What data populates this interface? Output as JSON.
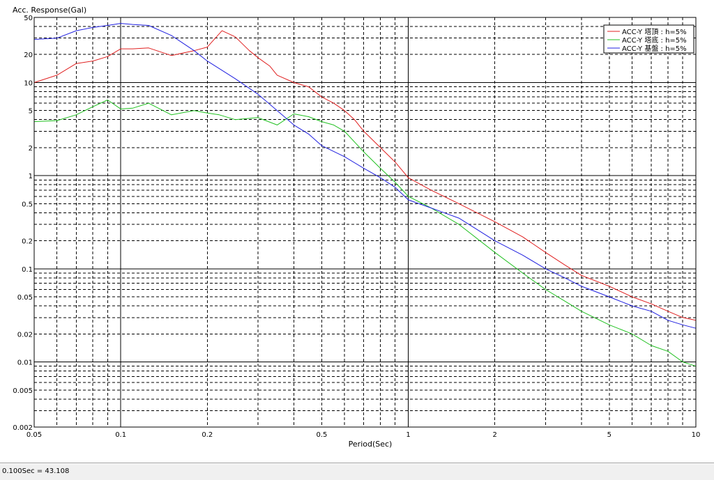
{
  "chart_data": {
    "type": "line",
    "ylabel": "Acc. Response(Gal)",
    "xlabel": "Period(Sec)",
    "xscale": "log",
    "yscale": "log",
    "xlim": [
      0.05,
      10
    ],
    "ylim": [
      0.002,
      50
    ],
    "grid": true,
    "legend_position": "top-right",
    "x_ticks": [
      {
        "v": 0.05,
        "label": "0.05"
      },
      {
        "v": 0.1,
        "label": "0.1"
      },
      {
        "v": 0.2,
        "label": "0.2"
      },
      {
        "v": 0.5,
        "label": "0.5"
      },
      {
        "v": 1,
        "label": "1"
      },
      {
        "v": 2,
        "label": "2"
      },
      {
        "v": 5,
        "label": "5"
      },
      {
        "v": 10,
        "label": "10"
      }
    ],
    "y_ticks": [
      {
        "v": 50,
        "label": "50"
      },
      {
        "v": 20,
        "label": "20"
      },
      {
        "v": 10,
        "label": "10"
      },
      {
        "v": 5,
        "label": "5"
      },
      {
        "v": 2,
        "label": "2"
      },
      {
        "v": 1,
        "label": "1"
      },
      {
        "v": 0.5,
        "label": "0.5"
      },
      {
        "v": 0.2,
        "label": "0.2"
      },
      {
        "v": 0.1,
        "label": "0.1"
      },
      {
        "v": 0.05,
        "label": "0.05"
      },
      {
        "v": 0.02,
        "label": "0.02"
      },
      {
        "v": 0.01,
        "label": "0.01"
      },
      {
        "v": 0.005,
        "label": "0.005"
      },
      {
        "v": 0.002,
        "label": "0.002"
      }
    ],
    "series": [
      {
        "name": "ACC-Y 塔頂 : h=5%",
        "color": "#e02020",
        "points": [
          [
            0.05,
            10
          ],
          [
            0.06,
            12
          ],
          [
            0.07,
            16
          ],
          [
            0.08,
            17
          ],
          [
            0.09,
            19
          ],
          [
            0.1,
            23
          ],
          [
            0.11,
            23
          ],
          [
            0.125,
            23.5
          ],
          [
            0.15,
            19.5
          ],
          [
            0.18,
            22
          ],
          [
            0.2,
            24
          ],
          [
            0.225,
            36
          ],
          [
            0.25,
            31
          ],
          [
            0.28,
            22
          ],
          [
            0.3,
            18.5
          ],
          [
            0.33,
            15
          ],
          [
            0.35,
            12
          ],
          [
            0.4,
            10
          ],
          [
            0.45,
            9
          ],
          [
            0.5,
            7
          ],
          [
            0.55,
            6
          ],
          [
            0.6,
            5
          ],
          [
            0.65,
            4
          ],
          [
            0.7,
            3
          ],
          [
            0.8,
            2
          ],
          [
            0.9,
            1.4
          ],
          [
            1.0,
            0.95
          ],
          [
            1.2,
            0.7
          ],
          [
            1.5,
            0.5
          ],
          [
            2,
            0.32
          ],
          [
            2.5,
            0.22
          ],
          [
            3,
            0.15
          ],
          [
            3.5,
            0.11
          ],
          [
            4,
            0.085
          ],
          [
            5,
            0.065
          ],
          [
            6,
            0.05
          ],
          [
            7,
            0.042
          ],
          [
            8,
            0.035
          ],
          [
            9,
            0.03
          ],
          [
            10,
            0.028
          ]
        ]
      },
      {
        "name": "ACC-Y 塔底 : h=5%",
        "color": "#20c020",
        "points": [
          [
            0.05,
            3.8
          ],
          [
            0.06,
            3.9
          ],
          [
            0.07,
            4.5
          ],
          [
            0.08,
            5.5
          ],
          [
            0.09,
            6.5
          ],
          [
            0.1,
            5.2
          ],
          [
            0.11,
            5.3
          ],
          [
            0.125,
            6
          ],
          [
            0.15,
            4.5
          ],
          [
            0.18,
            5
          ],
          [
            0.2,
            4.7
          ],
          [
            0.22,
            4.5
          ],
          [
            0.25,
            4
          ],
          [
            0.3,
            4.2
          ],
          [
            0.35,
            3.5
          ],
          [
            0.4,
            4.6
          ],
          [
            0.45,
            4.3
          ],
          [
            0.5,
            3.8
          ],
          [
            0.55,
            3.5
          ],
          [
            0.6,
            3
          ],
          [
            0.7,
            1.8
          ],
          [
            0.8,
            1.2
          ],
          [
            0.9,
            0.85
          ],
          [
            1.0,
            0.6
          ],
          [
            1.2,
            0.45
          ],
          [
            1.5,
            0.3
          ],
          [
            2,
            0.15
          ],
          [
            2.5,
            0.09
          ],
          [
            3,
            0.06
          ],
          [
            3.5,
            0.045
          ],
          [
            4,
            0.035
          ],
          [
            5,
            0.025
          ],
          [
            6,
            0.02
          ],
          [
            7,
            0.015
          ],
          [
            8,
            0.013
          ],
          [
            9,
            0.01
          ],
          [
            10,
            0.009
          ]
        ]
      },
      {
        "name": "ACC-Y 基盤 : h=5%",
        "color": "#2020e0",
        "points": [
          [
            0.05,
            29
          ],
          [
            0.06,
            30
          ],
          [
            0.07,
            36
          ],
          [
            0.08,
            39
          ],
          [
            0.09,
            41
          ],
          [
            0.1,
            43.1
          ],
          [
            0.11,
            42
          ],
          [
            0.125,
            41
          ],
          [
            0.15,
            32
          ],
          [
            0.18,
            22
          ],
          [
            0.2,
            17
          ],
          [
            0.25,
            11
          ],
          [
            0.3,
            7.5
          ],
          [
            0.35,
            5
          ],
          [
            0.4,
            3.5
          ],
          [
            0.45,
            2.8
          ],
          [
            0.5,
            2.1
          ],
          [
            0.6,
            1.6
          ],
          [
            0.7,
            1.2
          ],
          [
            0.8,
            0.95
          ],
          [
            0.9,
            0.75
          ],
          [
            1.0,
            0.55
          ],
          [
            1.2,
            0.45
          ],
          [
            1.5,
            0.35
          ],
          [
            2,
            0.2
          ],
          [
            2.5,
            0.14
          ],
          [
            3,
            0.1
          ],
          [
            3.5,
            0.08
          ],
          [
            4,
            0.065
          ],
          [
            5,
            0.05
          ],
          [
            6,
            0.04
          ],
          [
            7,
            0.035
          ],
          [
            8,
            0.028
          ],
          [
            9,
            0.025
          ],
          [
            10,
            0.023
          ]
        ]
      }
    ]
  },
  "status_bar": {
    "text": "0.100Sec = 43.108"
  }
}
